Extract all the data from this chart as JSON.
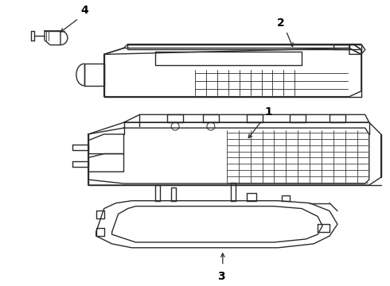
{
  "background_color": "#ffffff",
  "line_color": "#2a2a2a",
  "line_width": 1.0,
  "label_color": "#000000"
}
